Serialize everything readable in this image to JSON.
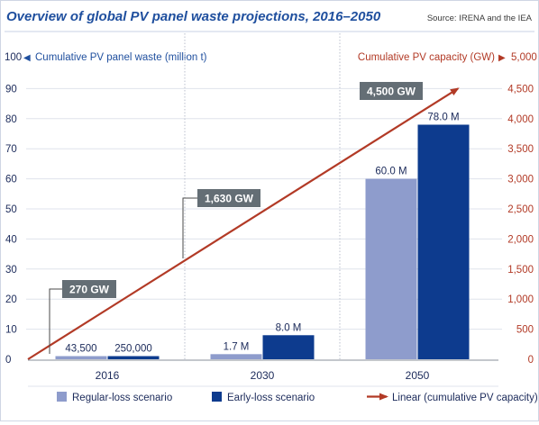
{
  "chart_data": {
    "type": "bar",
    "title": "Overview of global PV panel waste projections, 2016–2050",
    "source": "Source: IRENA and the IEA",
    "categories": [
      "2016",
      "2030",
      "2050"
    ],
    "left_axis": {
      "label": "Cumulative PV panel waste (million t)",
      "arrow": "◀",
      "top_value": "100",
      "ticks": [
        "0",
        "10",
        "20",
        "30",
        "40",
        "50",
        "60",
        "70",
        "80",
        "90"
      ],
      "ylim": [
        0,
        100
      ]
    },
    "right_axis": {
      "label": "Cumulative PV capacity (GW)",
      "arrow": "▶",
      "top_value": "5,000",
      "ticks": [
        "0",
        "500",
        "1,000",
        "1,500",
        "2,000",
        "2,500",
        "3,000",
        "3,500",
        "4,000",
        "4,500"
      ],
      "ylim": [
        0,
        5000
      ]
    },
    "series": [
      {
        "name": "Regular-loss scenario",
        "color": "#8e9ccc",
        "values": [
          0.0435,
          1.7,
          60.0
        ],
        "labels": [
          "43,500",
          "1.7 M",
          "60.0 M"
        ]
      },
      {
        "name": "Early-loss scenario",
        "color": "#0d3b8e",
        "values": [
          0.25,
          8.0,
          78.0
        ],
        "labels": [
          "250,000",
          "8.0 M",
          "78.0 M"
        ]
      }
    ],
    "line": {
      "name": "Linear (cumulative PV capacity)",
      "color": "#b23a26",
      "callouts": [
        {
          "x": "2016",
          "value": 270,
          "label": "270 GW"
        },
        {
          "x": "2030",
          "value": 1630,
          "label": "1,630 GW"
        },
        {
          "x": "2050",
          "value": 4500,
          "label": "4,500 GW"
        }
      ]
    },
    "legend_position": "bottom",
    "grid": true
  }
}
